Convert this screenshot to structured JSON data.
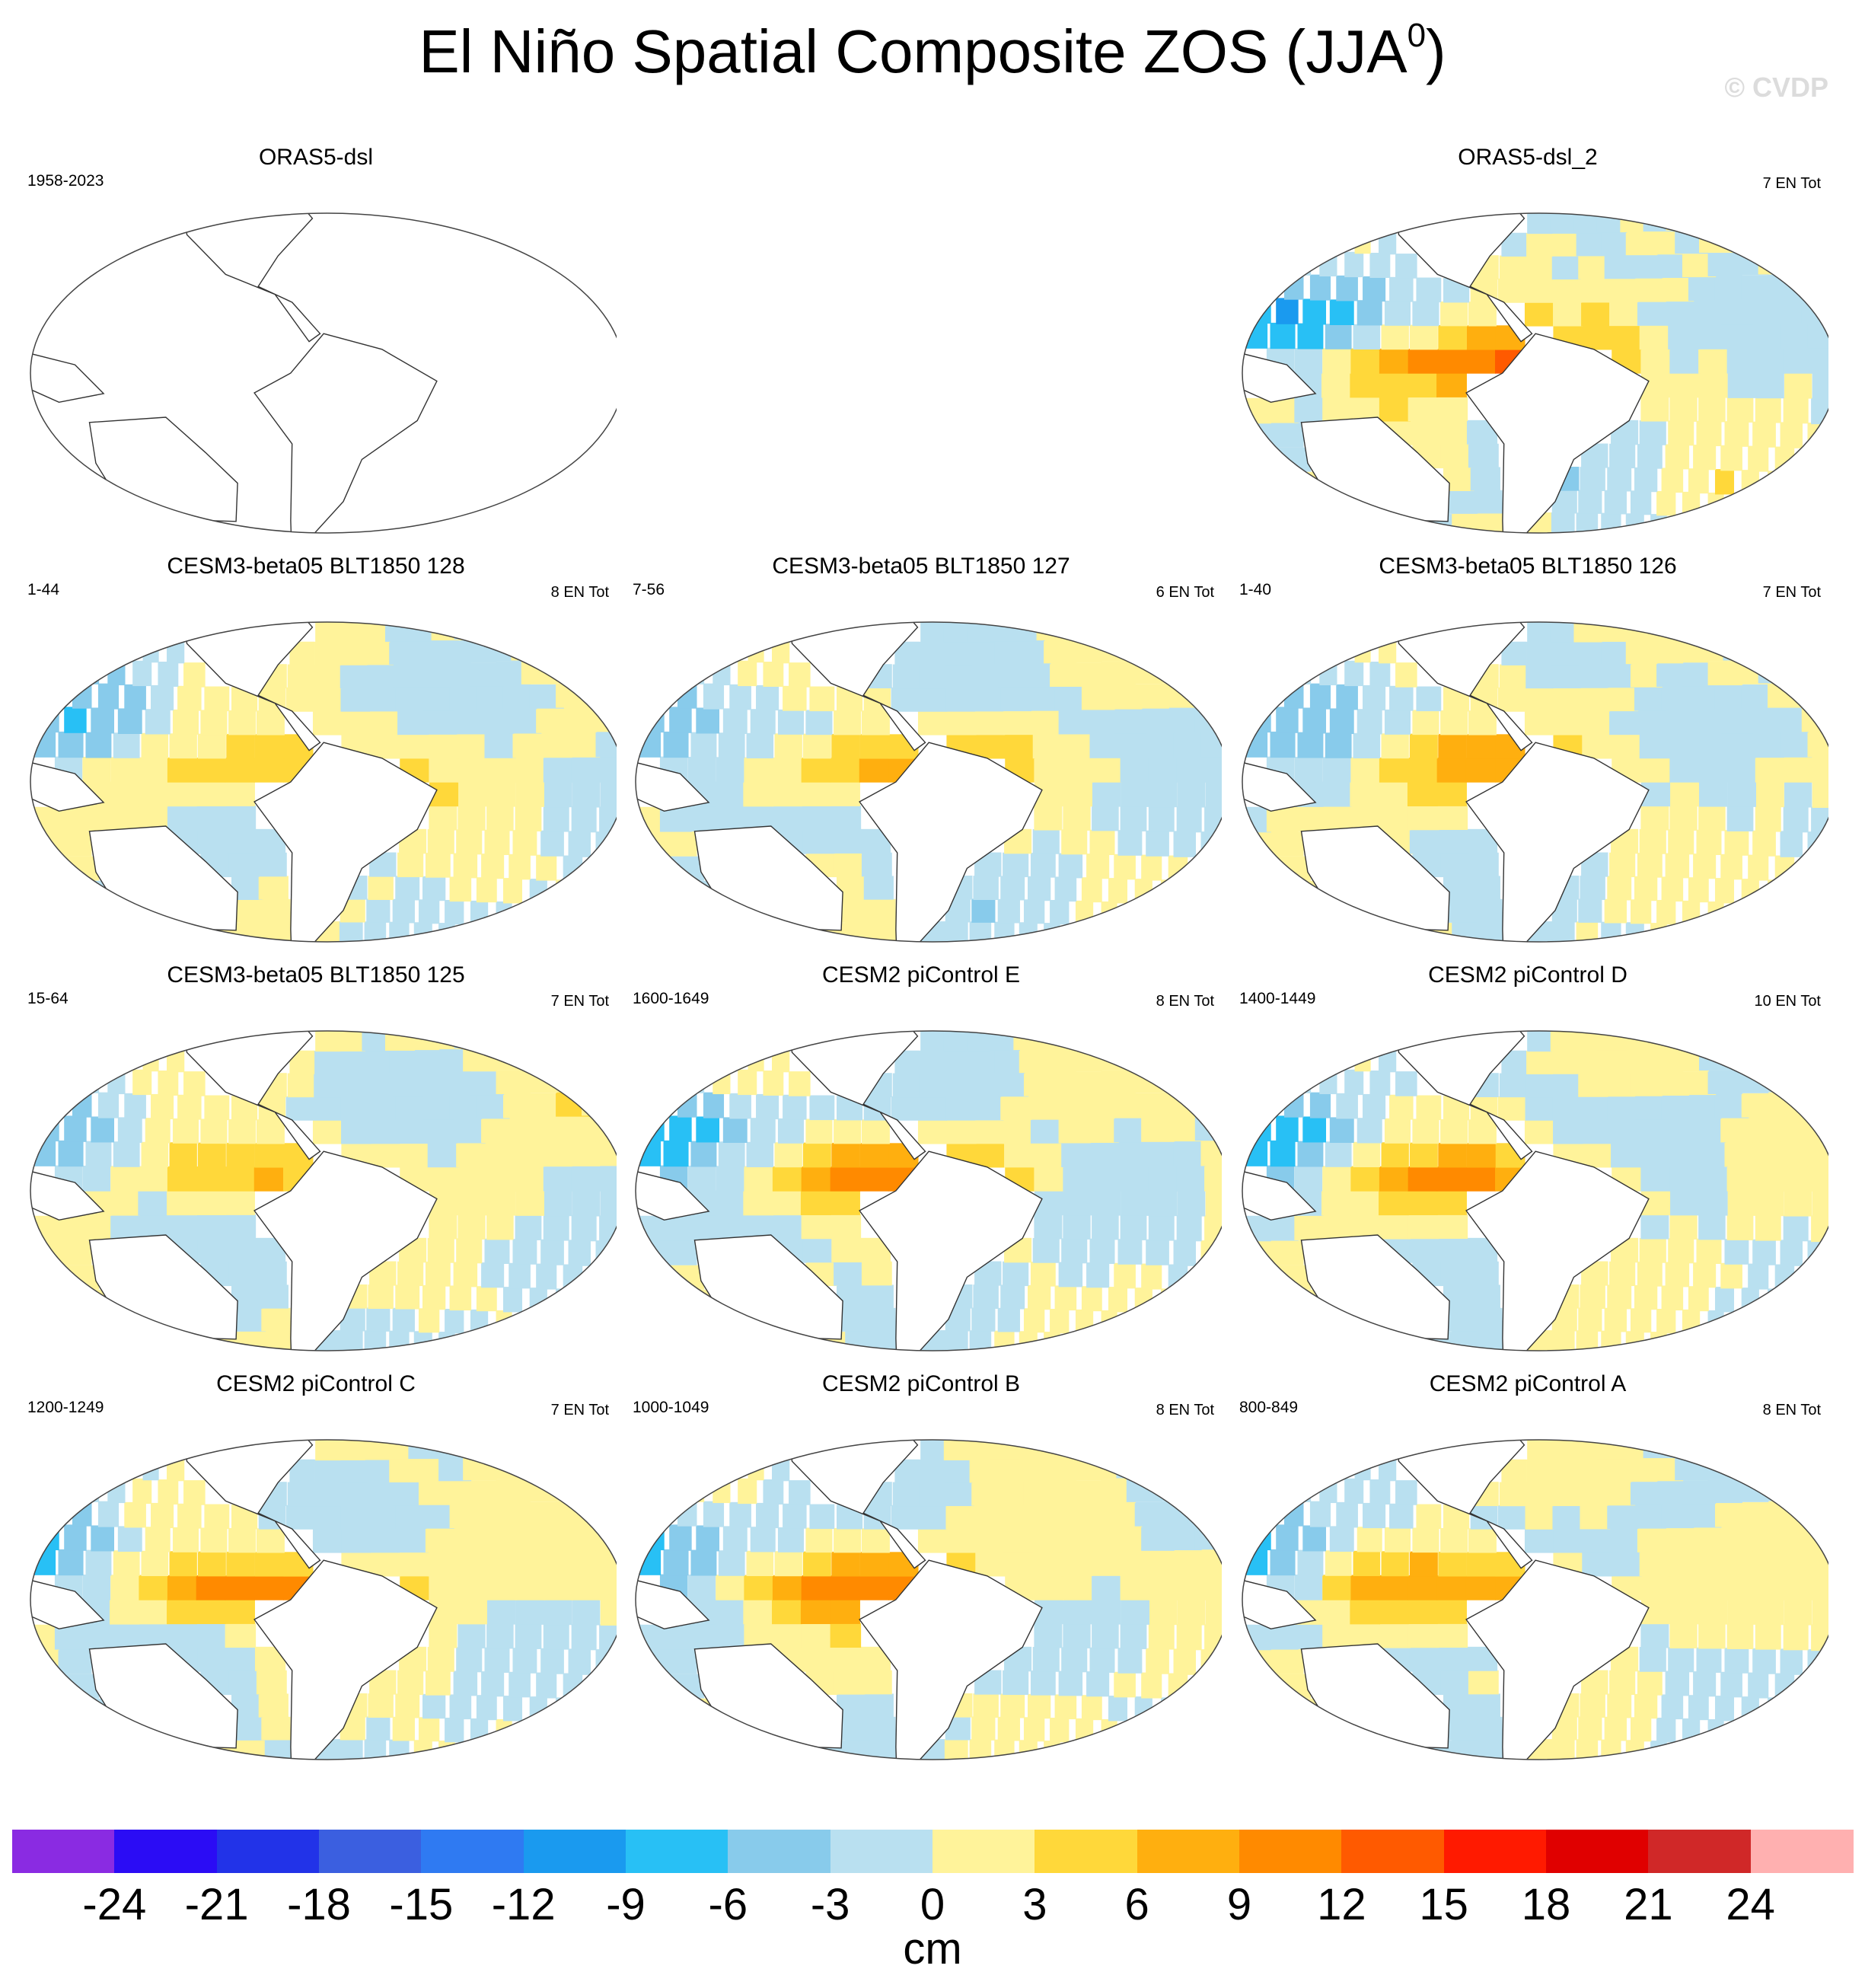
{
  "title": "El Niño Spatial Composite ZOS (JJA",
  "title_superscript": "0",
  "title_close": ")",
  "watermark": "© CVDP",
  "chart_data": {
    "type": "heatmap",
    "variable": "ZOS",
    "season": "JJA0",
    "colorbar": {
      "units": "cm",
      "tick_labels": [
        "-24",
        "-21",
        "-18",
        "-15",
        "-12",
        "-9",
        "-6",
        "-3",
        "0",
        "3",
        "6",
        "9",
        "12",
        "15",
        "18",
        "21",
        "24"
      ],
      "colors": [
        "#8a2be2",
        "#2b0cf5",
        "#2233e8",
        "#3b5fe0",
        "#2f7af2",
        "#1a9aef",
        "#28c0f5",
        "#88cbeb",
        "#b9e0f0",
        "#fff39a",
        "#ffd83a",
        "#ffaf0f",
        "#ff8a00",
        "#ff5a00",
        "#ff1a00",
        "#e00000",
        "#d02828",
        "#ffb0b0"
      ]
    },
    "panels": [
      {
        "name": "ORAS5-dsl",
        "period": "1958-2023",
        "count": "",
        "empty": true
      },
      {
        "name": "ORAS5-dsl_2",
        "period": "",
        "count": "7 EN Tot",
        "wp": -9,
        "ep": 12,
        "noise": 0.9
      },
      {
        "name": "CESM3-beta05 BLT1850 128",
        "period": "1-44",
        "count": "8 EN Tot",
        "wp": -5,
        "ep": 6,
        "noise": 0.5
      },
      {
        "name": "CESM3-beta05 BLT1850 127",
        "period": "7-56",
        "count": "6 EN Tot",
        "wp": -5,
        "ep": 7,
        "noise": 0.5
      },
      {
        "name": "CESM3-beta05 BLT1850 126",
        "period": "1-40",
        "count": "7 EN Tot",
        "wp": -4,
        "ep": 7,
        "noise": 0.5
      },
      {
        "name": "CESM3-beta05 BLT1850 125",
        "period": "15-64",
        "count": "7 EN Tot",
        "wp": -4,
        "ep": 6,
        "noise": 0.5
      },
      {
        "name": "CESM2 piControl E",
        "period": "1600-1649",
        "count": "8 EN Tot",
        "wp": -8,
        "ep": 10,
        "noise": 0.3
      },
      {
        "name": "CESM2 piControl D",
        "period": "1400-1449",
        "count": "10 EN Tot",
        "wp": -7,
        "ep": 8,
        "noise": 0.3
      },
      {
        "name": "CESM2 piControl C",
        "period": "1200-1249",
        "count": "7 EN Tot",
        "wp": -7,
        "ep": 10,
        "noise": 0.3
      },
      {
        "name": "CESM2 piControl B",
        "period": "1000-1049",
        "count": "8 EN Tot",
        "wp": -7,
        "ep": 10,
        "noise": 0.3
      },
      {
        "name": "CESM2 piControl A",
        "period": "800-849",
        "count": "8 EN Tot",
        "wp": -6,
        "ep": 8,
        "noise": 0.3
      }
    ]
  }
}
